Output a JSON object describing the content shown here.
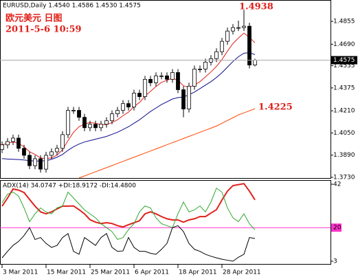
{
  "chart_data": [
    {
      "type": "candlestick",
      "title": "EURUSD,Daily  1.4540 1.4586 1.4530 1.4575",
      "annotations": [
        "欧元美元  日图",
        "2011-5-6 10:59"
      ],
      "peak_label": 1.4938,
      "long_ma_label": 1.4225,
      "current_price": 1.4575,
      "candle_colors": {
        "up": "#ffffff",
        "down": "#000000"
      },
      "open": [
        1.393,
        1.3964,
        1.3988,
        1.4013,
        1.3939,
        1.3889,
        1.3814,
        1.3864,
        1.3789,
        1.3889,
        1.3914,
        1.3939,
        1.4038,
        1.4213,
        1.4213,
        1.4163,
        1.4088,
        1.4113,
        1.4088,
        1.4113,
        1.4138,
        1.4188,
        1.4213,
        1.4262,
        1.4237,
        1.4337,
        1.4312,
        1.4437,
        1.4412,
        1.4462,
        1.4462,
        1.4437,
        1.4486,
        1.4362,
        1.4223,
        1.4387,
        1.4511,
        1.4511,
        1.4561,
        1.4586,
        1.4636,
        1.4711,
        1.4785,
        1.481,
        1.481,
        1.482,
        1.454
      ],
      "high": [
        1.3989,
        1.4013,
        1.4038,
        1.4038,
        1.3964,
        1.3914,
        1.3889,
        1.3889,
        1.3914,
        1.3939,
        1.3964,
        1.4063,
        1.4238,
        1.4238,
        1.4238,
        1.4188,
        1.4138,
        1.4138,
        1.4138,
        1.4163,
        1.4213,
        1.4238,
        1.4287,
        1.4287,
        1.4362,
        1.4362,
        1.4462,
        1.4462,
        1.4487,
        1.4487,
        1.4487,
        1.4511,
        1.4511,
        1.4387,
        1.4412,
        1.4536,
        1.4536,
        1.4586,
        1.4611,
        1.4661,
        1.4736,
        1.481,
        1.4835,
        1.486,
        1.4938,
        1.4845,
        1.4586
      ],
      "low": [
        1.3905,
        1.3939,
        1.3963,
        1.3914,
        1.3864,
        1.3789,
        1.3789,
        1.3764,
        1.3764,
        1.3864,
        1.3889,
        1.3914,
        1.4013,
        1.4188,
        1.4138,
        1.4063,
        1.4063,
        1.4063,
        1.4063,
        1.4088,
        1.4113,
        1.4163,
        1.4188,
        1.4212,
        1.4212,
        1.4287,
        1.4287,
        1.4387,
        1.4387,
        1.4437,
        1.4412,
        1.4412,
        1.4337,
        1.4163,
        1.4198,
        1.4362,
        1.4486,
        1.4486,
        1.4536,
        1.4561,
        1.4611,
        1.4686,
        1.476,
        1.4785,
        1.4785,
        1.4515,
        1.453
      ],
      "close": [
        1.3964,
        1.3988,
        1.4013,
        1.3939,
        1.3889,
        1.3814,
        1.3864,
        1.3789,
        1.3889,
        1.3914,
        1.3939,
        1.4038,
        1.4213,
        1.4213,
        1.4163,
        1.4088,
        1.4113,
        1.4088,
        1.4113,
        1.4138,
        1.4188,
        1.4213,
        1.4262,
        1.4237,
        1.4337,
        1.4312,
        1.4437,
        1.4412,
        1.4462,
        1.4462,
        1.4437,
        1.4486,
        1.4362,
        1.4223,
        1.4387,
        1.4511,
        1.4511,
        1.4561,
        1.4586,
        1.4636,
        1.4711,
        1.4785,
        1.481,
        1.481,
        1.482,
        1.454,
        1.4575
      ],
      "series": [
        {
          "color": "#e0201a",
          "values": [
            1.3964,
            1.3975,
            1.3985,
            1.3975,
            1.395,
            1.3915,
            1.3895,
            1.387,
            1.3865,
            1.387,
            1.389,
            1.393,
            1.3995,
            1.4055,
            1.4095,
            1.4115,
            1.4125,
            1.412,
            1.411,
            1.411,
            1.4125,
            1.4145,
            1.4175,
            1.42,
            1.424,
            1.427,
            1.4315,
            1.435,
            1.4385,
            1.4415,
            1.443,
            1.4445,
            1.443,
            1.439,
            1.438,
            1.4395,
            1.442,
            1.4455,
            1.449,
            1.453,
            1.458,
            1.464,
            1.4695,
            1.4735,
            1.477,
            1.474,
            1.47
          ]
        },
        {
          "color": "#0a0a8c",
          "values": [
            1.3865,
            1.3862,
            1.386,
            1.3858,
            1.3855,
            1.385,
            1.3848,
            1.3848,
            1.385,
            1.386,
            1.3875,
            1.3895,
            1.3925,
            1.395,
            1.397,
            1.3985,
            1.3995,
            1.4005,
            1.4015,
            1.4025,
            1.404,
            1.4055,
            1.4075,
            1.4095,
            1.412,
            1.4145,
            1.4175,
            1.4205,
            1.423,
            1.4255,
            1.4275,
            1.4295,
            1.4305,
            1.431,
            1.4325,
            1.4345,
            1.437,
            1.4395,
            1.442,
            1.445,
            1.4485,
            1.4525,
            1.4565,
            1.46,
            1.4625,
            1.463,
            1.4615
          ]
        },
        {
          "color": "#ff4500",
          "values": [
            null,
            null,
            null,
            null,
            null,
            null,
            null,
            null,
            null,
            null,
            null,
            null,
            null,
            null,
            1.3725,
            1.374,
            1.3755,
            1.377,
            1.3785,
            1.38,
            1.3815,
            1.383,
            1.3845,
            1.386,
            1.3875,
            1.389,
            1.3905,
            1.392,
            1.3935,
            1.395,
            1.3965,
            1.398,
            1.3995,
            1.401,
            1.4025,
            1.404,
            1.4055,
            1.407,
            1.4085,
            1.41,
            1.412,
            1.414,
            1.416,
            1.418,
            1.4195,
            1.421,
            1.4225
          ]
        }
      ],
      "ylim": [
        1.3725,
        1.5009
      ],
      "yticks": [
        1.4855,
        {
          "value": 1.469,
          "label": "1.4690"
        },
        1.4535,
        1.4375,
        {
          "value": 1.421,
          "label": "1.4210"
        },
        {
          "value": 1.405,
          "label": "1.4050"
        },
        {
          "value": 1.389,
          "label": "1.3890"
        },
        {
          "value": 1.373,
          "label": "1.3730"
        }
      ]
    },
    {
      "type": "line",
      "title": "ADX(14) 34.0747 +DI:18.9172 -DI:14.4800",
      "categories": [
        "3 Mar 2011",
        null,
        null,
        null,
        null,
        null,
        null,
        null,
        "15 Mar 2011",
        null,
        null,
        null,
        null,
        null,
        null,
        null,
        "25 Mar 2011",
        null,
        null,
        null,
        null,
        null,
        null,
        null,
        "6 Apr 2011",
        null,
        null,
        null,
        null,
        null,
        null,
        null,
        "18 Apr 2011",
        null,
        null,
        null,
        null,
        null,
        null,
        null,
        "28 Apr 2011",
        null,
        null,
        null,
        null,
        null,
        null
      ],
      "series": [
        {
          "color": "#e0201a",
          "values": [
            30.9,
            35,
            39.6,
            39,
            37.8,
            34.3,
            30.9,
            28,
            27,
            28,
            29.5,
            30.9,
            30.9,
            31,
            29.1,
            27,
            24,
            22.8,
            22.1,
            22.5,
            22.1,
            21,
            20.4,
            21.5,
            22.5,
            23.5,
            27,
            28,
            27,
            25.6,
            24.5,
            23.9,
            23.9,
            22.8,
            23.9,
            24.5,
            25.6,
            25.6,
            27.4,
            29.1,
            34,
            38.5,
            41.3,
            41.8,
            42.3,
            38.5,
            34.0747
          ]
        },
        {
          "color": "#2fa82f",
          "values": [
            32.6,
            37,
            38,
            36,
            30,
            23,
            27,
            30,
            28,
            27,
            30,
            31,
            38,
            35,
            32,
            29,
            27,
            25,
            22,
            20,
            18,
            14,
            15,
            19,
            22,
            28,
            31,
            30,
            25,
            22,
            21,
            20,
            27,
            33,
            28,
            29,
            31,
            28,
            33,
            40,
            38,
            30,
            25,
            23,
            27,
            22,
            18.9172
          ]
        },
        {
          "color": "#000000",
          "values": [
            4.7,
            8,
            11,
            13,
            16,
            20,
            14,
            15,
            12,
            10,
            11,
            15,
            17,
            8,
            6.5,
            15,
            13,
            11,
            15,
            17,
            10,
            8,
            8.2,
            15,
            10,
            8,
            8,
            7,
            6.5,
            9,
            12,
            20,
            21,
            18,
            12,
            9,
            8,
            6.5,
            5.5,
            4.7,
            4,
            3.5,
            3,
            5,
            6.5,
            15,
            14.48
          ]
        }
      ],
      "level_color": "#ff33cc",
      "ylim": [
        1.26,
        44.1
      ],
      "yticks": [
        42,
        20,
        3
      ]
    }
  ]
}
